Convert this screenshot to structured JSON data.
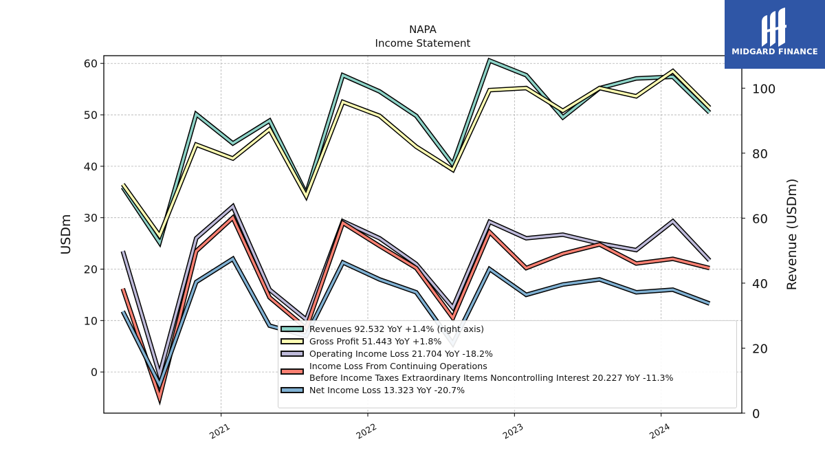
{
  "logo": {
    "text": "MIDGARD FINANCE",
    "icon": "midgard-logo-icon"
  },
  "chart_data": {
    "type": "line",
    "title": "NAPA",
    "subtitle": "Income Statement",
    "ylabel": "USDm",
    "ylabel_right": "Revenue (USDm)",
    "ylim": [
      -8,
      61.5
    ],
    "ylim_right": [
      0,
      110
    ],
    "yticks": [
      0,
      10,
      20,
      30,
      40,
      50,
      60
    ],
    "yticks_right": [
      0,
      20,
      40,
      60,
      80,
      100
    ],
    "xlim": [
      2020.2,
      2024.55
    ],
    "xticks": [
      2021,
      2022,
      2023,
      2024
    ],
    "xtick_labels": [
      "2021",
      "2022",
      "2023",
      "2024"
    ],
    "grid": true,
    "legend_position": "lower-right",
    "x": [
      2020.33,
      2020.58,
      2020.83,
      2021.08,
      2021.33,
      2021.58,
      2021.83,
      2022.08,
      2022.33,
      2022.58,
      2022.83,
      2023.08,
      2023.33,
      2023.58,
      2023.83,
      2024.08,
      2024.33
    ],
    "series": [
      {
        "name": "Revenues",
        "axis": "right",
        "color": "#8dd3c7",
        "legend": "Revenues  92.532 YoY +1.4% (right axis)",
        "values": [
          69.5,
          52.5,
          92.0,
          83.0,
          90.0,
          67.5,
          104.0,
          99.0,
          91.5,
          76.5,
          108.5,
          104.0,
          91.0,
          100.0,
          103.0,
          103.5,
          92.5
        ]
      },
      {
        "name": "Gross Profit",
        "axis": "left",
        "color": "#ffffb3",
        "legend": "Gross Profit  51.443 YoY +1.8%",
        "values": [
          36.5,
          26.5,
          44.2,
          41.5,
          47.2,
          34.2,
          52.5,
          49.8,
          43.8,
          39.3,
          54.8,
          55.2,
          50.8,
          55.2,
          53.6,
          58.5,
          51.4
        ]
      },
      {
        "name": "Operating Income Loss",
        "axis": "left",
        "color": "#bebada",
        "legend": "Operating Income Loss  21.704 YoY -18.2%",
        "values": [
          23.5,
          -0.5,
          26.0,
          32.2,
          16.0,
          10.2,
          29.3,
          26.0,
          21.0,
          12.5,
          29.2,
          26.0,
          26.7,
          25.0,
          23.7,
          29.3,
          21.7
        ]
      },
      {
        "name": "Income Loss From Continuing Operations Before Income Taxes Extraordinary Items Noncontrolling Interest",
        "axis": "left",
        "color": "#fb8072",
        "legend": "Income Loss From Continuing Operations\nBefore Income Taxes Extraordinary Items Noncontrolling Interest  20.227 YoY -11.3%",
        "values": [
          16.2,
          -5.0,
          23.5,
          30.0,
          14.5,
          8.5,
          29.0,
          24.5,
          20.2,
          10.5,
          27.2,
          20.2,
          23.0,
          24.8,
          21.1,
          22.0,
          20.2
        ]
      },
      {
        "name": "Net Income Loss",
        "axis": "left",
        "color": "#80b1d3",
        "legend": "Net Income Loss  13.323 YoY -20.7%",
        "values": [
          11.8,
          -2.5,
          17.5,
          22.0,
          9.0,
          7.0,
          21.3,
          18.0,
          15.5,
          5.5,
          20.0,
          15.0,
          17.0,
          18.0,
          15.5,
          16.0,
          13.3
        ]
      }
    ]
  }
}
